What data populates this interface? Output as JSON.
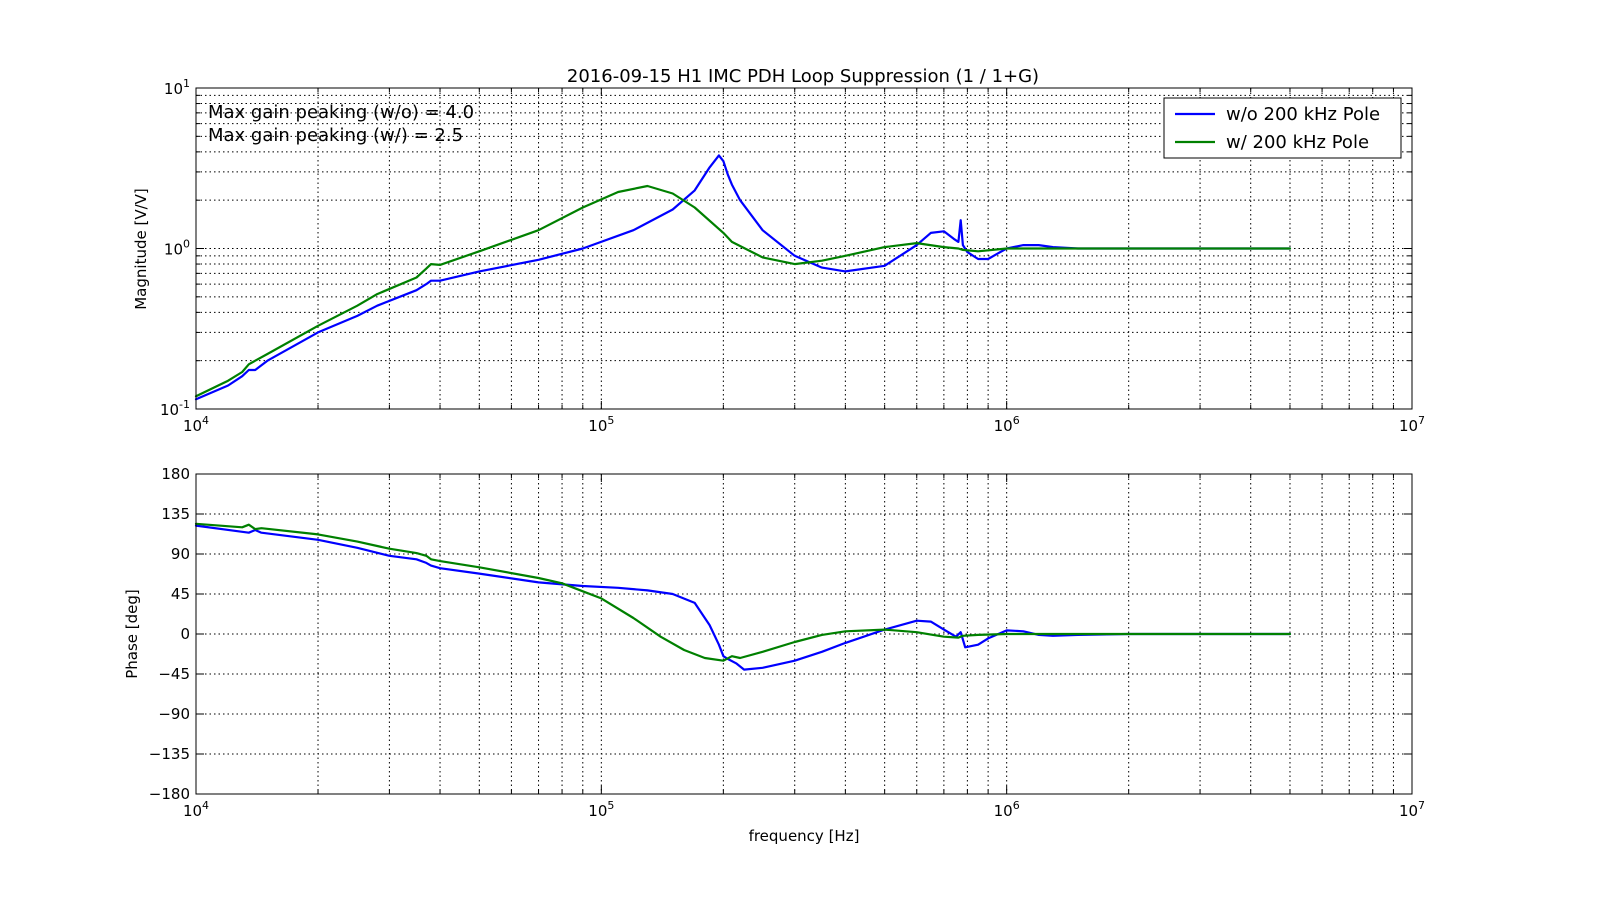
{
  "title": "2016-09-15 H1 IMC PDH Loop Suppression (1 / 1+G)",
  "annotations": [
    "Max gain peaking (w/o) = 4.0",
    "Max gain peaking (w/) = 2.5"
  ],
  "legend": {
    "placement": "top-right",
    "entries": [
      {
        "label": "w/o 200 kHz Pole",
        "color": "#0000ff"
      },
      {
        "label": "w/ 200 kHz Pole",
        "color": "#008000"
      }
    ]
  },
  "magnitude_axes": {
    "ylabel": "Magnitude [V/V]",
    "y_ticks": [
      {
        "base": "10",
        "exp": "-1"
      },
      {
        "base": "10",
        "exp": "0"
      },
      {
        "base": "10",
        "exp": "1"
      }
    ],
    "x_ticks": [
      {
        "base": "10",
        "exp": "4"
      },
      {
        "base": "10",
        "exp": "5"
      },
      {
        "base": "10",
        "exp": "6"
      },
      {
        "base": "10",
        "exp": "7"
      }
    ]
  },
  "phase_axes": {
    "ylabel": "Phase [deg]",
    "xlabel": "frequency [Hz]",
    "y_ticks": [
      "180",
      "135",
      "90",
      "45",
      "0",
      "−45",
      "−90",
      "−135",
      "−180"
    ],
    "x_ticks": [
      {
        "base": "10",
        "exp": "4"
      },
      {
        "base": "10",
        "exp": "5"
      },
      {
        "base": "10",
        "exp": "6"
      },
      {
        "base": "10",
        "exp": "7"
      }
    ]
  },
  "chart_data": [
    {
      "type": "line",
      "title": "2016-09-15 H1 IMC PDH Loop Suppression (1 / 1+G)",
      "xlabel": "",
      "ylabel": "Magnitude [V/V]",
      "xscale": "log",
      "yscale": "log",
      "xlim": [
        10000,
        10000000
      ],
      "ylim": [
        0.1,
        10
      ],
      "grid": true,
      "legend": "top-right",
      "series": [
        {
          "name": "w/o 200 kHz Pole",
          "color": "#0000ff",
          "x": [
            10000,
            12000,
            13000,
            13500,
            14000,
            15000,
            20000,
            25000,
            28000,
            35000,
            37000,
            38000,
            40000,
            50000,
            70000,
            90000,
            120000,
            150000,
            170000,
            185000,
            195000,
            200000,
            205000,
            210000,
            220000,
            250000,
            300000,
            350000,
            400000,
            500000,
            600000,
            650000,
            700000,
            740000,
            760000,
            770000,
            780000,
            800000,
            850000,
            900000,
            950000,
            1000000,
            1100000,
            1200000,
            1300000,
            1500000,
            2000000,
            3000000,
            5000000
          ],
          "y": [
            0.115,
            0.14,
            0.16,
            0.175,
            0.175,
            0.2,
            0.3,
            0.38,
            0.44,
            0.55,
            0.6,
            0.63,
            0.63,
            0.72,
            0.85,
            1.0,
            1.3,
            1.75,
            2.3,
            3.2,
            3.8,
            3.5,
            2.9,
            2.5,
            2.0,
            1.3,
            0.9,
            0.76,
            0.72,
            0.78,
            1.05,
            1.25,
            1.28,
            1.15,
            1.1,
            1.5,
            1.05,
            0.95,
            0.86,
            0.86,
            0.93,
            1.0,
            1.05,
            1.05,
            1.02,
            1.0,
            1.0,
            1.0,
            1.0
          ]
        },
        {
          "name": "w/ 200 kHz Pole",
          "color": "#008000",
          "x": [
            10000,
            12000,
            13000,
            13500,
            14000,
            15000,
            20000,
            25000,
            28000,
            35000,
            37000,
            38000,
            40000,
            50000,
            70000,
            90000,
            110000,
            130000,
            150000,
            170000,
            200000,
            210000,
            250000,
            300000,
            350000,
            400000,
            500000,
            600000,
            700000,
            760000,
            780000,
            850000,
            1000000,
            1500000,
            2000000,
            3000000,
            5000000
          ],
          "y": [
            0.12,
            0.15,
            0.17,
            0.19,
            0.2,
            0.22,
            0.33,
            0.44,
            0.52,
            0.66,
            0.75,
            0.8,
            0.79,
            0.96,
            1.3,
            1.8,
            2.25,
            2.45,
            2.2,
            1.8,
            1.25,
            1.1,
            0.88,
            0.8,
            0.84,
            0.9,
            1.02,
            1.08,
            1.02,
            1.0,
            0.98,
            0.96,
            1.0,
            1.0,
            1.0,
            1.0,
            1.0
          ]
        }
      ]
    },
    {
      "type": "line",
      "title": "",
      "xlabel": "frequency [Hz]",
      "ylabel": "Phase [deg]",
      "xscale": "log",
      "yscale": "linear",
      "xlim": [
        10000,
        10000000
      ],
      "ylim": [
        -180,
        180
      ],
      "grid": true,
      "series": [
        {
          "name": "w/o 200 kHz Pole",
          "color": "#0000ff",
          "x": [
            10000,
            13000,
            13500,
            14000,
            14500,
            20000,
            25000,
            30000,
            35000,
            37000,
            38000,
            40000,
            50000,
            70000,
            90000,
            110000,
            130000,
            150000,
            170000,
            185000,
            195000,
            200000,
            205000,
            215000,
            225000,
            250000,
            300000,
            350000,
            400000,
            500000,
            600000,
            650000,
            700000,
            750000,
            770000,
            790000,
            850000,
            900000,
            1000000,
            1100000,
            1200000,
            1300000,
            1500000,
            2000000,
            5000000
          ],
          "y": [
            122,
            115,
            114,
            117,
            114,
            106,
            97,
            88,
            84,
            80,
            77,
            74,
            68,
            58,
            54,
            52,
            49,
            45,
            35,
            10,
            -12,
            -25,
            -28,
            -33,
            -40,
            -38,
            -30,
            -20,
            -10,
            5,
            15,
            14,
            5,
            -3,
            2,
            -15,
            -12,
            -5,
            4,
            3,
            -1,
            -2,
            -1,
            0,
            0
          ]
        },
        {
          "name": "w/ 200 kHz Pole",
          "color": "#008000",
          "x": [
            10000,
            13000,
            13500,
            14000,
            14500,
            20000,
            25000,
            30000,
            35000,
            37000,
            38000,
            40000,
            50000,
            70000,
            80000,
            90000,
            100000,
            120000,
            140000,
            160000,
            180000,
            200000,
            210000,
            220000,
            250000,
            300000,
            350000,
            400000,
            500000,
            600000,
            700000,
            760000,
            780000,
            850000,
            1000000,
            1500000,
            2000000,
            5000000
          ],
          "y": [
            124,
            120,
            123,
            118,
            119,
            112,
            104,
            96,
            91,
            88,
            84,
            82,
            75,
            63,
            57,
            48,
            40,
            18,
            -3,
            -18,
            -27,
            -30,
            -25,
            -27,
            -20,
            -9,
            -1,
            3,
            5,
            2,
            -3,
            -4,
            -2,
            -1,
            0,
            0,
            0,
            0
          ]
        }
      ]
    }
  ]
}
